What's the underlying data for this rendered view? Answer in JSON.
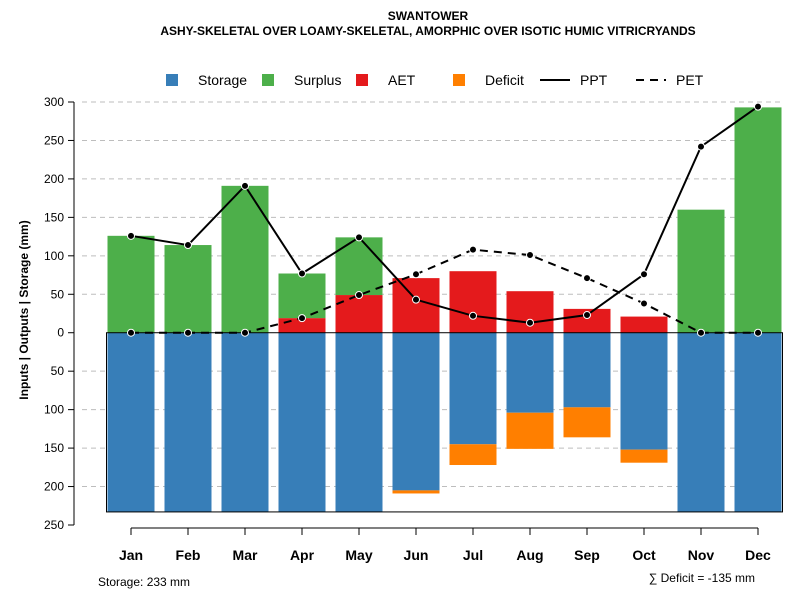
{
  "chart_data": {
    "type": "bar",
    "title": "SWANTOWER",
    "subtitle": "ASHY-SKELETAL OVER LOAMY-SKELETAL, AMORPHIC OVER ISOTIC HUMIC VITRICRYANDS",
    "ylabel": "Inputs | Outputs | Storage    (mm)",
    "ylim": [
      -250,
      300
    ],
    "y_ticks": [
      {
        "value": 300,
        "label": "300"
      },
      {
        "value": 250,
        "label": "250"
      },
      {
        "value": 200,
        "label": "200"
      },
      {
        "value": 150,
        "label": "150"
      },
      {
        "value": 100,
        "label": "100"
      },
      {
        "value": 50,
        "label": "50"
      },
      {
        "value": 0,
        "label": "0"
      },
      {
        "value": -50,
        "label": "50"
      },
      {
        "value": -100,
        "label": "100"
      },
      {
        "value": -150,
        "label": "150"
      },
      {
        "value": -200,
        "label": "200"
      },
      {
        "value": -250,
        "label": "250"
      }
    ],
    "grid": true,
    "categories": [
      "Jan",
      "Feb",
      "Mar",
      "Apr",
      "May",
      "Jun",
      "Jul",
      "Aug",
      "Sep",
      "Oct",
      "Nov",
      "Dec"
    ],
    "series": [
      {
        "name": "Storage",
        "color": "#377EB8",
        "values": [
          233,
          233,
          233,
          233,
          233,
          205,
          145,
          104,
          97,
          152,
          233,
          233
        ]
      },
      {
        "name": "Surplus",
        "color": "#4DAF4A",
        "values": [
          126,
          114,
          191,
          58,
          75,
          0,
          0,
          0,
          0,
          0,
          160,
          293
        ]
      },
      {
        "name": "AET",
        "color": "#E41A1C",
        "values": [
          0,
          0,
          0,
          19,
          49,
          71,
          80,
          54,
          31,
          21,
          0,
          0
        ]
      },
      {
        "name": "Deficit",
        "color": "#FF7F00",
        "values": [
          0,
          0,
          0,
          0,
          0,
          4,
          27,
          47,
          39,
          17,
          0,
          0
        ]
      },
      {
        "name": "PPT",
        "color": "#000000",
        "style": "solid",
        "values": [
          126,
          114,
          191,
          77,
          124,
          43,
          22,
          13,
          23,
          76,
          242,
          294
        ]
      },
      {
        "name": "PET",
        "color": "#000000",
        "style": "dashed",
        "values": [
          0,
          0,
          0,
          19,
          49,
          76,
          108,
          101,
          71,
          38,
          0,
          0
        ]
      }
    ],
    "storage_capacity": 233,
    "legend_position": "top",
    "storage_text": "Storage: 233 mm",
    "deficit_text": "∑ Deficit = -135 mm"
  }
}
